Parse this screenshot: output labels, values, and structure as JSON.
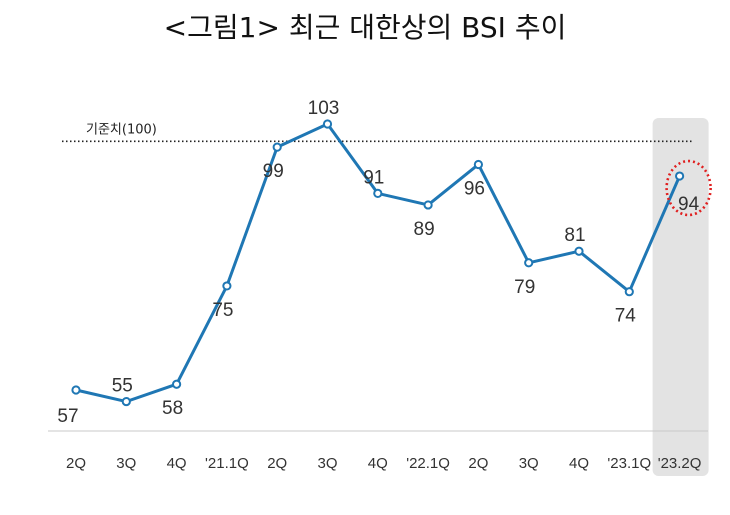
{
  "chart_data": {
    "type": "line",
    "title": "<그림1> 최근 대한상의 BSI 추이",
    "categories": [
      "2Q",
      "3Q",
      "4Q",
      "'21.1Q",
      "2Q",
      "3Q",
      "4Q",
      "'22.1Q",
      "2Q",
      "3Q",
      "4Q",
      "'23.1Q",
      "'23.2Q"
    ],
    "values": [
      57,
      55,
      58,
      75,
      99,
      103,
      91,
      89,
      96,
      79,
      81,
      74,
      94
    ],
    "labels": [
      "57",
      "55",
      "58",
      "75",
      "99",
      "103",
      "91",
      "89",
      "96",
      "79",
      "81",
      "74",
      "94"
    ],
    "reference_line": {
      "value": 100,
      "label": "기준치(100)"
    },
    "highlight_index": 12,
    "colors": {
      "line": "#1f77b4",
      "marker_fill": "#ffffff",
      "highlight_bg": "#e3e3e3",
      "highlight_circle": "#e02020",
      "reference": "#222222"
    },
    "grid": false
  }
}
